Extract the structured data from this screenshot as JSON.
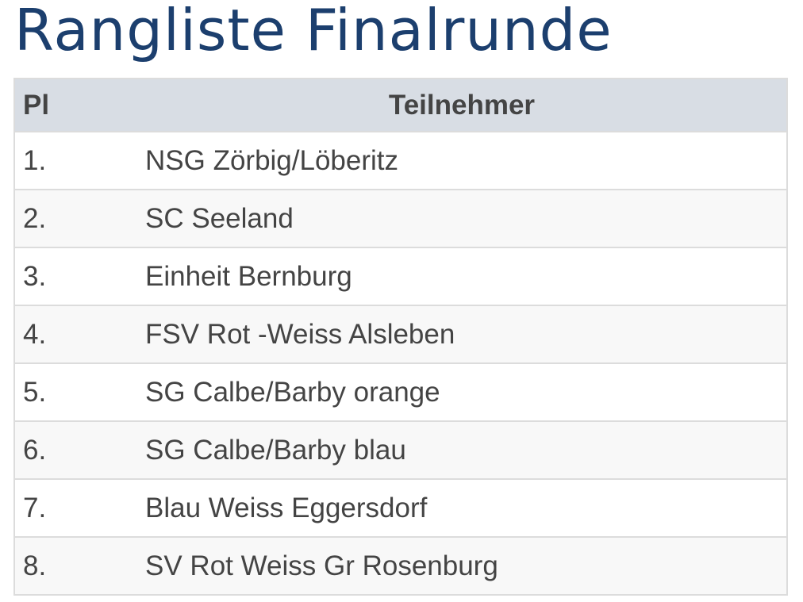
{
  "header": {
    "title": "Rangliste Finalrunde"
  },
  "table": {
    "columns": [
      "Pl",
      "Teilnehmer"
    ],
    "rows": [
      [
        "1.",
        "NSG Zörbig/Löberitz"
      ],
      [
        "2.",
        "SC Seeland"
      ],
      [
        "3.",
        "Einheit Bernburg"
      ],
      [
        "4.",
        "FSV Rot -Weiss Alsleben"
      ],
      [
        "5.",
        "SG Calbe/Barby orange"
      ],
      [
        "6.",
        "SG Calbe/Barby blau"
      ],
      [
        "7.",
        "Blau Weiss Eggersdorf"
      ],
      [
        "8.",
        "SV Rot Weiss Gr Rosenburg"
      ]
    ]
  }
}
